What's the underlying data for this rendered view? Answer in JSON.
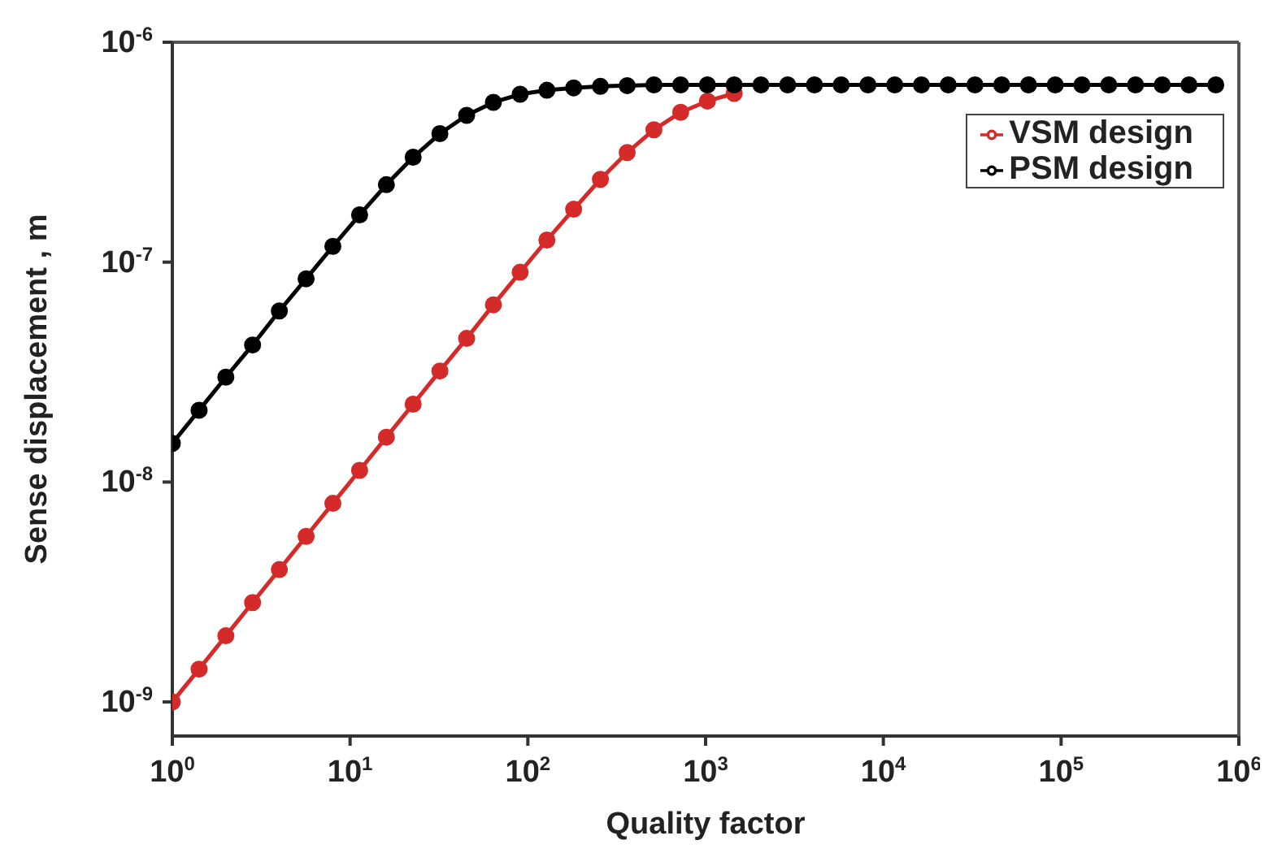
{
  "chart_data": {
    "type": "line",
    "xlabel": "Quality factor",
    "ylabel": "Sense displacement , m",
    "x": [
      1,
      1.414,
      2,
      2.828,
      4,
      5.657,
      8,
      11.31,
      16,
      22.63,
      32,
      45.25,
      64,
      90.51,
      128,
      181,
      256,
      362,
      512,
      724,
      1024,
      1448,
      2048,
      2896,
      4096,
      5793,
      8192,
      11585,
      16384,
      23170,
      32768,
      46341,
      65536,
      92682,
      131072,
      185364,
      262144,
      370728,
      524288,
      741455
    ],
    "series": [
      {
        "name": "VSM design",
        "color": "#d42a2a",
        "values": [
          1e-09,
          1.41e-09,
          2e-09,
          2.83e-09,
          4e-09,
          5.66e-09,
          8e-09,
          1.13e-08,
          1.6e-08,
          2.26e-08,
          3.2e-08,
          4.5e-08,
          6.4e-08,
          9e-08,
          1.26e-07,
          1.74e-07,
          2.38e-07,
          3.15e-07,
          4e-07,
          4.8e-07,
          5.4e-07,
          5.85e-07,
          null,
          null,
          null,
          null,
          null,
          null,
          null,
          null,
          null,
          null,
          null,
          null,
          null,
          null,
          null,
          null,
          null,
          null
        ]
      },
      {
        "name": "PSM design",
        "color": "#000000",
        "values": [
          1.5e-08,
          2.12e-08,
          3e-08,
          4.2e-08,
          6e-08,
          8.4e-08,
          1.18e-07,
          1.64e-07,
          2.25e-07,
          3e-07,
          3.84e-07,
          4.65e-07,
          5.33e-07,
          5.8e-07,
          6.05e-07,
          6.2e-07,
          6.3e-07,
          6.35e-07,
          6.4e-07,
          6.4e-07,
          6.4e-07,
          6.4e-07,
          6.4e-07,
          6.4e-07,
          6.4e-07,
          6.4e-07,
          6.4e-07,
          6.4e-07,
          6.4e-07,
          6.4e-07,
          6.4e-07,
          6.4e-07,
          6.4e-07,
          6.4e-07,
          6.4e-07,
          6.4e-07,
          6.4e-07,
          6.4e-07,
          6.4e-07,
          6.4e-07
        ]
      }
    ],
    "log": "xy",
    "xlim": [
      1,
      1000000
    ],
    "ylim": [
      7e-10,
      1e-06
    ],
    "xticks": [
      {
        "value": 1,
        "label": "10$^{0}$"
      },
      {
        "value": 10,
        "label": "10$^{1}$"
      },
      {
        "value": 100,
        "label": "10$^{2}$"
      },
      {
        "value": 1000,
        "label": "10$^{3}$"
      },
      {
        "value": 10000,
        "label": "10$^{4}$"
      },
      {
        "value": 100000,
        "label": "10$^{5}$"
      },
      {
        "value": 1000000,
        "label": "10$^{6}$"
      }
    ],
    "yticks": [
      {
        "value": 1e-09,
        "label": "10$^{-9}$"
      },
      {
        "value": 1e-08,
        "label": "10$^{-8}$"
      },
      {
        "value": 1e-07,
        "label": "10$^{-7}$"
      },
      {
        "value": 1e-06,
        "label": "10$^{-6}$"
      }
    ],
    "marker": "circle",
    "legend": "top right",
    "grid": false
  }
}
